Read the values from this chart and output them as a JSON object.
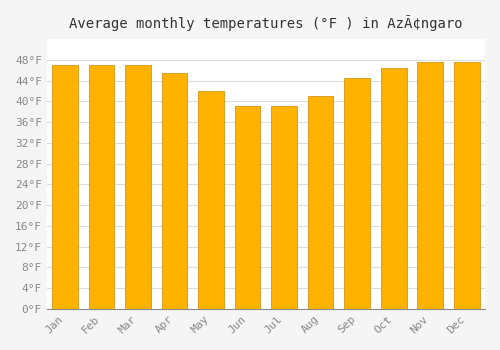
{
  "title": "Average monthly temperatures (°F ) in AzÃ¢ngaro",
  "categories": [
    "Jan",
    "Feb",
    "Mar",
    "Apr",
    "May",
    "Jun",
    "Jul",
    "Aug",
    "Sep",
    "Oct",
    "Nov",
    "Dec"
  ],
  "values": [
    47.0,
    47.0,
    47.0,
    45.5,
    42.0,
    39.0,
    39.0,
    41.0,
    44.5,
    46.5,
    47.5,
    47.5
  ],
  "bar_color": "#FFB300",
  "bar_edge_color": "#CC8800",
  "ylim": [
    0,
    52
  ],
  "ytick_step": 4,
  "background_color": "#f5f5f5",
  "plot_bg_color": "#ffffff",
  "grid_color": "#dddddd",
  "title_fontsize": 10,
  "tick_fontsize": 8,
  "font_family": "monospace",
  "title_color": "#333333",
  "tick_color": "#888888"
}
